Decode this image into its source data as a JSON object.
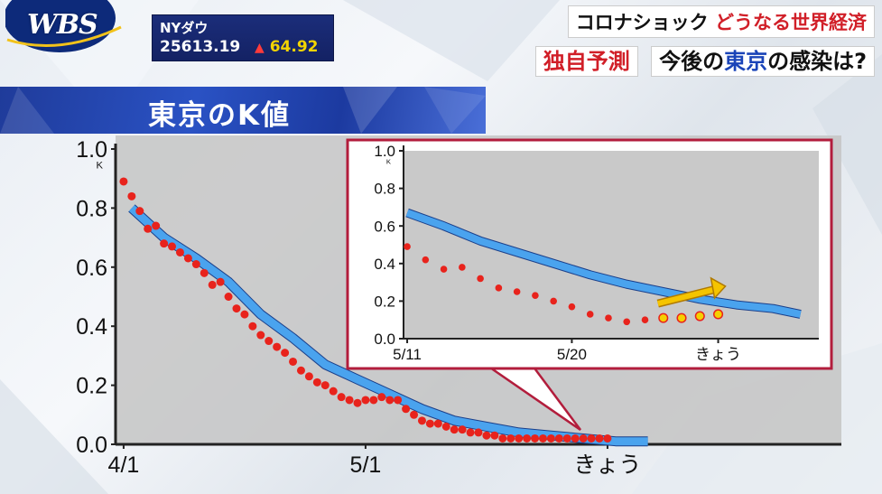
{
  "logo": {
    "text": "WBS"
  },
  "ticker": {
    "name": "NYダウ",
    "time": "",
    "value": "25613.19",
    "arrow": "▲",
    "change": "64.92"
  },
  "headline": {
    "line1_a": "コロナショック",
    "line1_b": "どうなる世界経済",
    "tag": "独自予測",
    "line2_a": "今後の",
    "line2_b": "東京",
    "line2_c": "の感染は?"
  },
  "banner": {
    "title": "東京のK値"
  },
  "colors": {
    "band": "#4aa3ee",
    "band_edge": "#1b3f8a",
    "dot": "#e8231c",
    "forecast_dot": "#f5d000",
    "arrow": "#f5c400",
    "inset_border": "#b21d3c"
  },
  "chart_data": [
    {
      "type": "scatter",
      "title": "",
      "ylabel": "K",
      "ylim": [
        0,
        1.0
      ],
      "yticks": [
        "0.0",
        "0.2",
        "0.4",
        "0.6",
        "0.8",
        "1.0"
      ],
      "xticks": [
        {
          "x": 1,
          "label": "4/1"
        },
        {
          "x": 31,
          "label": "5/1"
        },
        {
          "x": 61,
          "label": "きょう"
        }
      ],
      "xlim": [
        0,
        90
      ],
      "series": [
        {
          "kind": "points",
          "x": [
            1,
            2,
            3,
            4,
            5,
            6,
            7,
            8,
            9,
            10,
            11,
            12,
            13,
            14,
            15,
            16,
            17,
            18,
            19,
            20,
            21,
            22,
            23,
            24,
            25,
            26,
            27,
            28,
            29,
            30,
            31,
            32,
            33,
            34,
            35,
            36,
            37,
            38,
            39,
            40,
            41,
            42,
            43,
            44,
            45,
            46,
            47,
            48,
            49,
            50,
            51,
            52,
            53,
            54,
            55,
            56,
            57,
            58,
            59,
            60,
            61
          ],
          "y": [
            0.89,
            0.84,
            0.79,
            0.73,
            0.74,
            0.68,
            0.67,
            0.65,
            0.63,
            0.61,
            0.58,
            0.54,
            0.55,
            0.5,
            0.46,
            0.44,
            0.4,
            0.37,
            0.35,
            0.33,
            0.31,
            0.28,
            0.25,
            0.23,
            0.21,
            0.2,
            0.18,
            0.16,
            0.15,
            0.14,
            0.15,
            0.15,
            0.16,
            0.15,
            0.15,
            0.12,
            0.1,
            0.08,
            0.07,
            0.07,
            0.06,
            0.05,
            0.05,
            0.04,
            0.04,
            0.03,
            0.03,
            0.02,
            0.02,
            0.02,
            0.02,
            0.02,
            0.02,
            0.02,
            0.02,
            0.02,
            0.02,
            0.02,
            0.02,
            0.02,
            0.02
          ]
        },
        {
          "kind": "band",
          "x": [
            2,
            6,
            10,
            14,
            18,
            22,
            26,
            30,
            34,
            38,
            42,
            46,
            50,
            54,
            58,
            62,
            66
          ],
          "y": [
            0.8,
            0.7,
            0.63,
            0.55,
            0.44,
            0.36,
            0.27,
            0.22,
            0.17,
            0.12,
            0.08,
            0.06,
            0.04,
            0.03,
            0.02,
            0.01,
            0.01
          ]
        }
      ]
    },
    {
      "type": "scatter",
      "title": "",
      "ylabel": "K",
      "ylim": [
        0,
        1.0
      ],
      "yticks": [
        "0.0",
        "0.2",
        "0.4",
        "0.6",
        "0.8",
        "1.0"
      ],
      "xticks": [
        {
          "x": 0,
          "label": "5/11"
        },
        {
          "x": 9,
          "label": "5/20"
        },
        {
          "x": 17,
          "label": "きょう"
        }
      ],
      "xlim": [
        -0.2,
        22.5
      ],
      "series": [
        {
          "kind": "points",
          "x": [
            0,
            1,
            2,
            3,
            4,
            5,
            6,
            7,
            8,
            9,
            10,
            11,
            12,
            13
          ],
          "y": [
            0.49,
            0.42,
            0.37,
            0.38,
            0.32,
            0.27,
            0.25,
            0.23,
            0.2,
            0.17,
            0.13,
            0.11,
            0.09,
            0.1
          ]
        },
        {
          "kind": "forecast_points",
          "x": [
            14,
            15,
            16,
            17
          ],
          "y": [
            0.11,
            0.11,
            0.12,
            0.13
          ]
        },
        {
          "kind": "band",
          "x": [
            0,
            2,
            4,
            6,
            8,
            10,
            12,
            14,
            16,
            18,
            20,
            21.5
          ],
          "y": [
            0.67,
            0.6,
            0.52,
            0.46,
            0.4,
            0.34,
            0.29,
            0.25,
            0.21,
            0.18,
            0.16,
            0.13
          ]
        }
      ]
    }
  ]
}
